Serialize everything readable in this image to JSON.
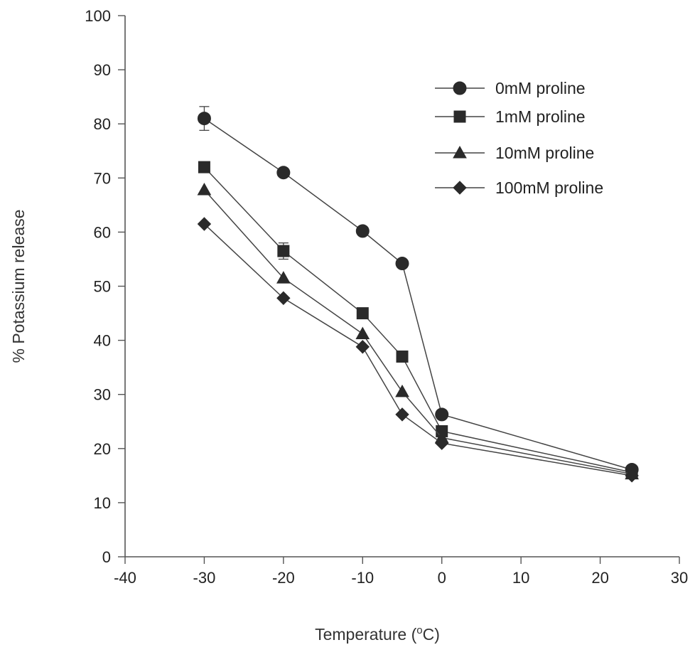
{
  "chart_data": {
    "type": "line",
    "title": "",
    "xlabel": "Temperature (",
    "xlabel_unit_super": "o",
    "xlabel_unit": "C)",
    "ylabel": "% Potassium release",
    "xlim": [
      -40,
      30
    ],
    "ylim": [
      0,
      100
    ],
    "xticks": [
      -40,
      -30,
      -20,
      -10,
      0,
      10,
      20,
      30
    ],
    "yticks": [
      0,
      10,
      20,
      30,
      40,
      50,
      60,
      70,
      80,
      90,
      100
    ],
    "grid": false,
    "legend_position": "top-right",
    "x": [
      -30,
      -20,
      -10,
      -5,
      0,
      24
    ],
    "series": [
      {
        "name": "0mM proline",
        "marker": "circle",
        "values": [
          81,
          71,
          60.2,
          54.2,
          26.3,
          16.1
        ],
        "errors": [
          2.2,
          0,
          0,
          0,
          0,
          0
        ]
      },
      {
        "name": "1mM proline",
        "marker": "square",
        "values": [
          72,
          56.5,
          45,
          37,
          23.2,
          15.6
        ],
        "errors": [
          0,
          1.5,
          0,
          0,
          0,
          0
        ]
      },
      {
        "name": "10mM proline",
        "marker": "triangle",
        "values": [
          67.8,
          51.5,
          41.2,
          30.5,
          22,
          15.3
        ],
        "errors": [
          0,
          0,
          0,
          0,
          0,
          0
        ]
      },
      {
        "name": "100mM proline",
        "marker": "diamond",
        "values": [
          61.5,
          47.8,
          38.8,
          26.3,
          21,
          15
        ],
        "errors": [
          0,
          0,
          0,
          0,
          0,
          0
        ]
      }
    ]
  }
}
